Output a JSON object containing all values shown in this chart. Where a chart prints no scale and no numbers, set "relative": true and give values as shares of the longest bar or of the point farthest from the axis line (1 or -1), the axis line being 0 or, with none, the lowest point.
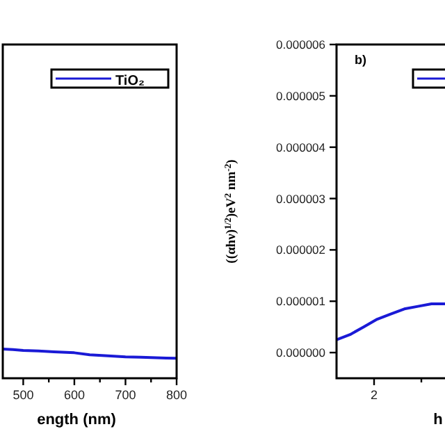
{
  "chart_data": [
    {
      "type": "line",
      "xlabel": "ength (nm)",
      "relative": true,
      "x": [
        460,
        480,
        500,
        530,
        560,
        600,
        630,
        660,
        700,
        730,
        760,
        780,
        800
      ],
      "series": [
        {
          "name": "TiO₂",
          "color": "#1a1ad6",
          "values": [
            1,
            0.98,
            0.95,
            0.93,
            0.9,
            0.87,
            0.8,
            0.77,
            0.73,
            0.72,
            0.7,
            0.69,
            0.68
          ]
        }
      ],
      "xlim": [
        460,
        800
      ],
      "xticks": [
        500,
        {
          "value": 550,
          "label": null
        },
        600,
        {
          "value": 650,
          "label": null
        },
        700,
        {
          "value": 750,
          "label": null
        },
        800
      ],
      "tick_labels": "x",
      "legend": "top right"
    },
    {
      "type": "line",
      "ylabel": "((αhν)$^{1/2}$)eV$^{2}$ nm$^{-2}$)",
      "xlabel": "h",
      "annotations": [
        "b)",
        "2"
      ],
      "categories": [
        null,
        null,
        null,
        null,
        null,
        null,
        null,
        null,
        null
      ],
      "series": [
        {
          "color": "#1a1ad6",
          "values": [
            2.5e-07,
            3.5e-07,
            5e-07,
            6.5e-07,
            7.5e-07,
            8.5e-07,
            9e-07,
            9.5e-07,
            9.5e-07
          ]
        }
      ],
      "ylim": [
        -5e-07,
        6e-06
      ],
      "yticks": [
        {
          "value": 0,
          "label": "0.000000"
        },
        {
          "value": 1e-06,
          "label": "0.000001"
        },
        {
          "value": 2e-06,
          "label": "0.000002"
        },
        {
          "value": 3e-06,
          "label": "0.000003"
        },
        {
          "value": 4e-06,
          "label": "0.000004"
        },
        {
          "value": 5e-06,
          "label": "0.000005"
        },
        {
          "value": 6e-06,
          "label": "0.000006"
        }
      ]
    }
  ]
}
